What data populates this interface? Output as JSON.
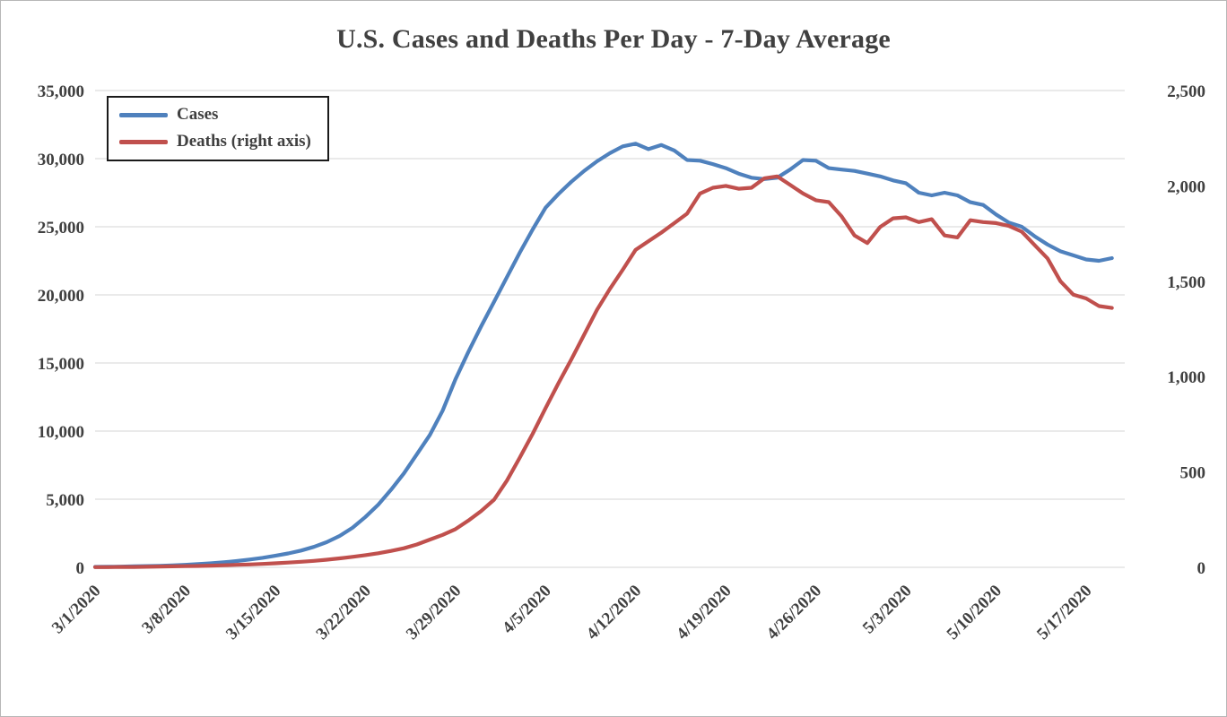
{
  "frame": {
    "background": "#ffffff",
    "border_color": "#b7b7b7"
  },
  "chart_data": {
    "type": "line",
    "title": "U.S. Cases and Deaths Per Day - 7-Day Average",
    "title_color": "#404040",
    "grid": "horizontal",
    "gridline_color": "#d6d6d6",
    "legend_position": "top-left",
    "x_unit": "days, daily points starting 3/1/2020",
    "x_range": [
      0,
      80
    ],
    "x_tick_positions": [
      0,
      7,
      14,
      21,
      28,
      35,
      42,
      49,
      56,
      63,
      70,
      77
    ],
    "x_tick_labels": [
      "3/1/2020",
      "3/8/2020",
      "3/15/2020",
      "3/22/2020",
      "3/29/2020",
      "4/5/2020",
      "4/12/2020",
      "4/19/2020",
      "4/26/2020",
      "5/3/2020",
      "5/10/2020",
      "5/17/2020"
    ],
    "left_axis": {
      "min": 0,
      "max": 35000,
      "step": 5000,
      "tick_labels": [
        "0",
        "5,000",
        "10,000",
        "15,000",
        "20,000",
        "25,000",
        "30,000",
        "35,000"
      ]
    },
    "right_axis": {
      "min": 0,
      "max": 2500,
      "step": 500,
      "tick_labels": [
        "0",
        "500",
        "1,000",
        "1,500",
        "2,000",
        "2,500"
      ]
    },
    "series": [
      {
        "name": "Cases",
        "axis": "left",
        "color": "#4f81bd",
        "values": [
          30,
          40,
          55,
          70,
          90,
          115,
          145,
          185,
          235,
          295,
          370,
          460,
          570,
          700,
          850,
          1020,
          1230,
          1500,
          1850,
          2300,
          2900,
          3700,
          4600,
          5700,
          6900,
          8300,
          9700,
          11500,
          13800,
          15800,
          17700,
          19500,
          21300,
          23100,
          24800,
          26400,
          27400,
          28300,
          29100,
          29800,
          30400,
          30900,
          31100,
          30700,
          31000,
          30600,
          29900,
          29850,
          29600,
          29300,
          28900,
          28600,
          28500,
          28600,
          29200,
          29900,
          29850,
          29300,
          29200,
          29100,
          28900,
          28700,
          28400,
          28200,
          27500,
          27300,
          27500,
          27300,
          26800,
          26600,
          25900,
          25300,
          25000,
          24300,
          23700,
          23200,
          22900,
          22600,
          22500,
          22700
        ]
      },
      {
        "name": "Deaths (right axis)",
        "axis": "right",
        "color": "#c0504d",
        "values": [
          1,
          1,
          2,
          2,
          3,
          4,
          5,
          6,
          7,
          9,
          11,
          13,
          15,
          18,
          21,
          25,
          29,
          34,
          40,
          47,
          55,
          64,
          74,
          86,
          100,
          120,
          145,
          170,
          200,
          245,
          295,
          355,
          455,
          575,
          700,
          835,
          965,
          1090,
          1220,
          1350,
          1460,
          1560,
          1665,
          1710,
          1755,
          1805,
          1855,
          1960,
          1990,
          2000,
          1985,
          1990,
          2040,
          2050,
          2005,
          1960,
          1925,
          1915,
          1840,
          1740,
          1700,
          1785,
          1830,
          1835,
          1810,
          1825,
          1740,
          1730,
          1820,
          1810,
          1805,
          1790,
          1760,
          1690,
          1620,
          1500,
          1430,
          1410,
          1370,
          1360
        ]
      }
    ]
  }
}
